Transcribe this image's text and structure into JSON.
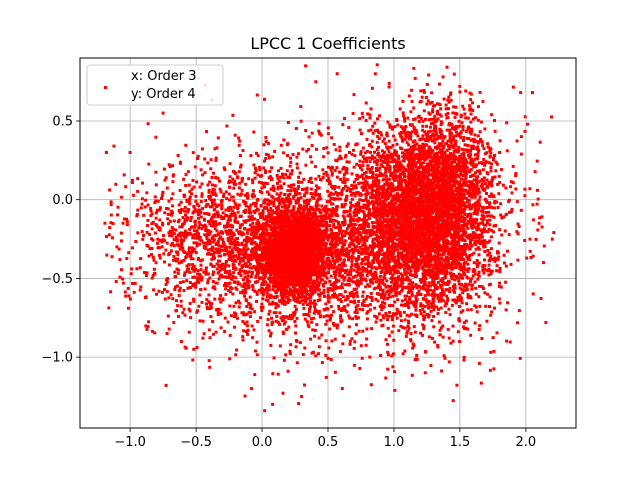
{
  "chart_data": {
    "type": "scatter",
    "title": "LPCC 1 Coefficients",
    "xlabel": "",
    "ylabel": "",
    "xlim": [
      -1.38,
      2.38
    ],
    "ylim": [
      -1.45,
      0.9
    ],
    "xticks": [
      -1.0,
      -0.5,
      0.0,
      0.5,
      1.0,
      1.5,
      2.0
    ],
    "xtick_labels": [
      "−1.0",
      "−0.5",
      "0.0",
      "0.5",
      "1.0",
      "1.5",
      "2.0"
    ],
    "yticks": [
      -1.0,
      -0.5,
      0.0,
      0.5
    ],
    "ytick_labels": [
      "−1.0",
      "−0.5",
      "0.0",
      "0.5"
    ],
    "grid": true,
    "legend_position": "upper-left",
    "legend_lines": [
      "x: Order 3",
      "y: Order 4"
    ],
    "marker_color": "#ff0000",
    "series": [
      {
        "name": "x: Order 3\ny: Order 4",
        "color": "#ff0000",
        "clusters": [
          {
            "cx": 0.25,
            "cy": -0.32,
            "sx": 0.12,
            "sy": 0.13,
            "n": 2600
          },
          {
            "cx": 0.25,
            "cy": -0.32,
            "sx": 0.35,
            "sy": 0.25,
            "n": 1500
          },
          {
            "cx": 1.2,
            "cy": -0.15,
            "sx": 0.28,
            "sy": 0.3,
            "n": 3800
          },
          {
            "cx": 1.35,
            "cy": 0.1,
            "sx": 0.2,
            "sy": 0.25,
            "n": 1200
          },
          {
            "cx": -0.4,
            "cy": -0.25,
            "sx": 0.3,
            "sy": 0.25,
            "n": 800
          },
          {
            "cx": 0.5,
            "cy": -0.3,
            "sx": 0.7,
            "sy": 0.35,
            "n": 1200
          }
        ],
        "points": [
          [
            -1.18,
            0.3
          ],
          [
            -1.1,
            -0.3
          ],
          [
            -1.0,
            0.3
          ],
          [
            -0.8,
            -0.6
          ],
          [
            -0.75,
            0.55
          ],
          [
            -0.72,
            -0.85
          ],
          [
            0.02,
            -1.34
          ],
          [
            0.08,
            -1.3
          ],
          [
            0.33,
            0.85
          ],
          [
            0.57,
            0.8
          ],
          [
            2.2,
            -0.25
          ],
          [
            2.05,
            0.68
          ],
          [
            1.96,
            0.68
          ],
          [
            2.1,
            -0.15
          ],
          [
            1.85,
            -0.7
          ],
          [
            0.3,
            -1.25
          ],
          [
            -0.08,
            -1.2
          ],
          [
            1.65,
            -0.8
          ]
        ]
      }
    ]
  }
}
